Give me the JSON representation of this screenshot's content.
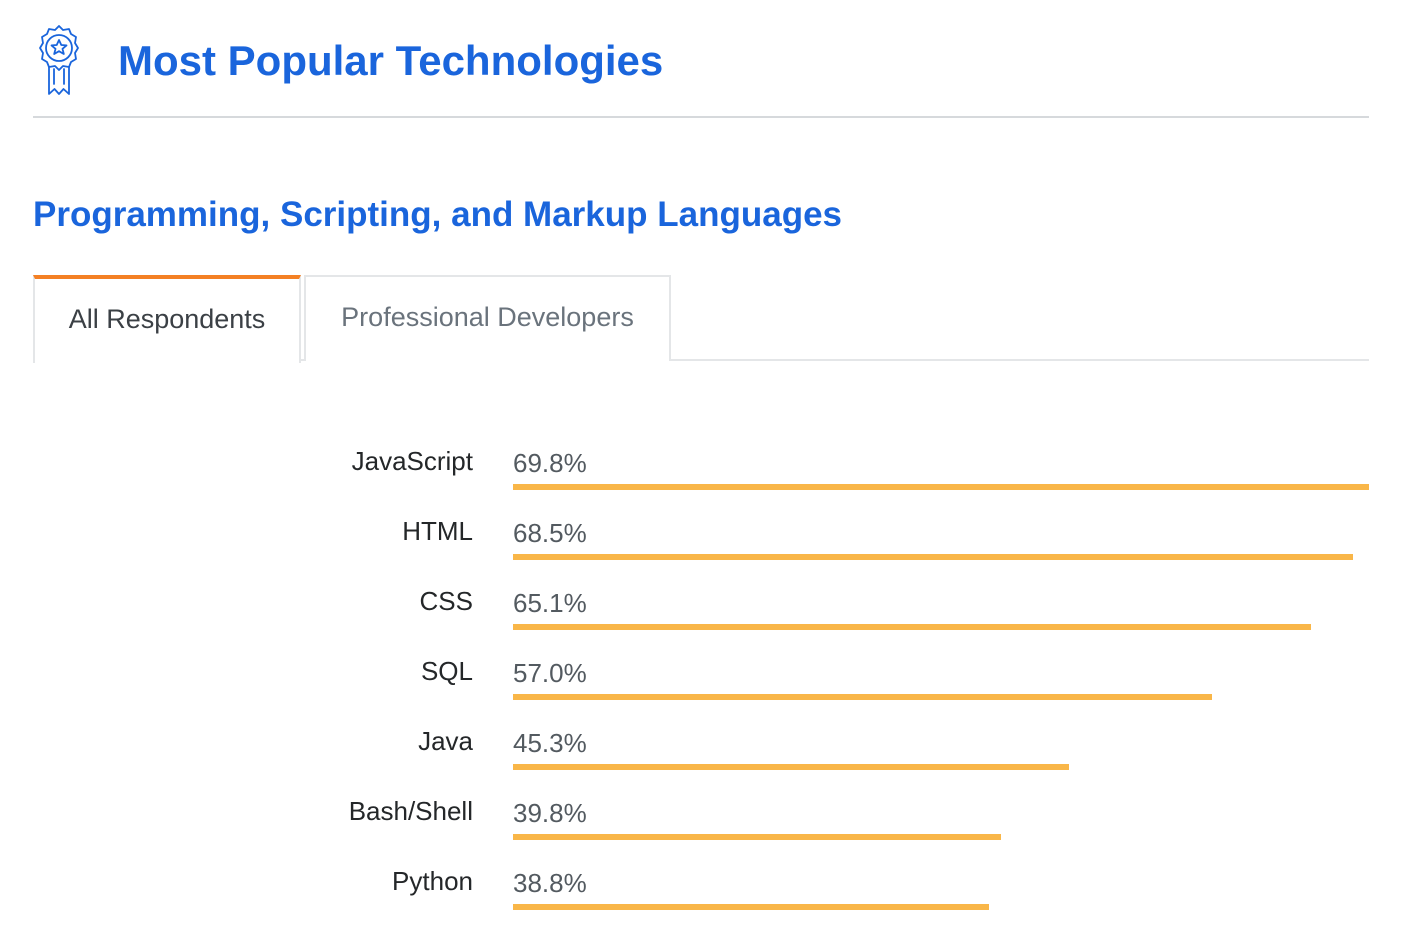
{
  "header": {
    "title": "Most Popular Technologies",
    "icon": "award-ribbon-icon",
    "accent_color": "#1a65dc"
  },
  "section": {
    "title": "Programming, Scripting, and Markup Languages"
  },
  "tabs": [
    {
      "label": "All Respondents",
      "active": true
    },
    {
      "label": "Professional Developers",
      "active": false
    }
  ],
  "colors": {
    "bar": "#f9b648",
    "tab_active_border": "#f48024",
    "title": "#1a65dc"
  },
  "chart_data": {
    "type": "bar",
    "orientation": "horizontal",
    "categories": [
      "JavaScript",
      "HTML",
      "CSS",
      "SQL",
      "Java",
      "Bash/Shell",
      "Python"
    ],
    "values": [
      69.8,
      68.5,
      65.1,
      57.0,
      45.3,
      39.8,
      38.8
    ],
    "value_labels": [
      "69.8%",
      "68.5%",
      "65.1%",
      "57.0%",
      "45.3%",
      "39.8%",
      "38.8%"
    ],
    "unit": "%",
    "xlim": [
      0,
      69.8
    ]
  }
}
